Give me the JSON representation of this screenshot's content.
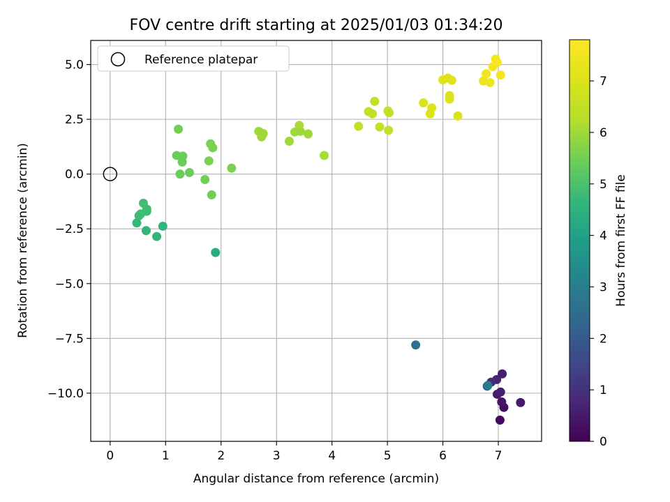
{
  "chart_data": {
    "type": "scatter",
    "title": "FOV centre drift starting at 2025/01/03 01:34:20",
    "xlabel": "Angular distance from reference (arcmin)",
    "ylabel": "Rotation from reference (arcmin)",
    "xlim": [
      -0.35,
      7.78
    ],
    "ylim": [
      -12.2,
      6.1
    ],
    "xticks": [
      0,
      1,
      2,
      3,
      4,
      5,
      6,
      7
    ],
    "yticks": [
      -10.0,
      -7.5,
      -5.0,
      -2.5,
      0.0,
      2.5,
      5.0
    ],
    "ytick_labels": [
      "−10.0",
      "−7.5",
      "−5.0",
      "−2.5",
      "0.0",
      "2.5",
      "5.0"
    ],
    "grid": true,
    "legend": {
      "placement": "top-left",
      "entries": [
        "Reference platepar"
      ]
    },
    "reference_point": {
      "x": 0,
      "y": 0,
      "label": "Reference platepar"
    },
    "colorbar": {
      "label": "Hours from first FF file",
      "min": 0,
      "max": 7.8,
      "ticks": [
        0,
        1,
        2,
        3,
        4,
        5,
        6,
        7
      ],
      "colormap": "viridis"
    },
    "points": [
      {
        "x": 7.03,
        "y": -11.23,
        "c": 0.2
      },
      {
        "x": 7.1,
        "y": -10.65,
        "c": 0.3
      },
      {
        "x": 7.06,
        "y": -10.4,
        "c": 0.4
      },
      {
        "x": 7.4,
        "y": -10.43,
        "c": 0.5
      },
      {
        "x": 6.98,
        "y": -10.05,
        "c": 0.5
      },
      {
        "x": 7.04,
        "y": -9.95,
        "c": 0.6
      },
      {
        "x": 7.07,
        "y": -9.12,
        "c": 0.6
      },
      {
        "x": 6.97,
        "y": -9.38,
        "c": 0.7
      },
      {
        "x": 6.87,
        "y": -9.5,
        "c": 0.9
      },
      {
        "x": 6.8,
        "y": -9.68,
        "c": 1.3
      },
      {
        "x": 6.81,
        "y": -9.65,
        "c": 2.9
      },
      {
        "x": 5.51,
        "y": -7.8,
        "c": 2.6
      },
      {
        "x": 1.9,
        "y": -3.58,
        "c": 4.3
      },
      {
        "x": 0.48,
        "y": -2.23,
        "c": 4.7
      },
      {
        "x": 0.52,
        "y": -1.9,
        "c": 4.8
      },
      {
        "x": 0.55,
        "y": -1.82,
        "c": 4.8
      },
      {
        "x": 0.65,
        "y": -2.58,
        "c": 4.6
      },
      {
        "x": 0.84,
        "y": -2.85,
        "c": 4.6
      },
      {
        "x": 0.95,
        "y": -2.38,
        "c": 4.6
      },
      {
        "x": 0.6,
        "y": -1.33,
        "c": 4.9
      },
      {
        "x": 0.66,
        "y": -1.6,
        "c": 4.8
      },
      {
        "x": 0.66,
        "y": -1.7,
        "c": 4.8
      },
      {
        "x": 1.2,
        "y": 0.85,
        "c": 5.4
      },
      {
        "x": 1.23,
        "y": 2.05,
        "c": 5.5
      },
      {
        "x": 1.3,
        "y": 0.55,
        "c": 5.4
      },
      {
        "x": 1.31,
        "y": 0.82,
        "c": 5.4
      },
      {
        "x": 1.26,
        "y": 0.0,
        "c": 5.4
      },
      {
        "x": 1.43,
        "y": 0.07,
        "c": 5.4
      },
      {
        "x": 1.71,
        "y": -0.25,
        "c": 5.5
      },
      {
        "x": 1.78,
        "y": 0.6,
        "c": 5.6
      },
      {
        "x": 1.81,
        "y": 1.38,
        "c": 5.6
      },
      {
        "x": 1.85,
        "y": 1.2,
        "c": 5.6
      },
      {
        "x": 1.83,
        "y": -0.95,
        "c": 5.5
      },
      {
        "x": 2.19,
        "y": 0.27,
        "c": 5.6
      },
      {
        "x": 2.68,
        "y": 1.95,
        "c": 6.0
      },
      {
        "x": 2.73,
        "y": 1.7,
        "c": 6.0
      },
      {
        "x": 2.76,
        "y": 1.85,
        "c": 6.0
      },
      {
        "x": 3.23,
        "y": 1.5,
        "c": 6.0
      },
      {
        "x": 3.33,
        "y": 1.92,
        "c": 6.0
      },
      {
        "x": 3.41,
        "y": 2.22,
        "c": 6.1
      },
      {
        "x": 3.43,
        "y": 1.95,
        "c": 6.0
      },
      {
        "x": 3.57,
        "y": 1.83,
        "c": 6.0
      },
      {
        "x": 3.86,
        "y": 0.85,
        "c": 6.1
      },
      {
        "x": 4.48,
        "y": 2.18,
        "c": 6.5
      },
      {
        "x": 4.66,
        "y": 2.85,
        "c": 6.5
      },
      {
        "x": 4.73,
        "y": 2.75,
        "c": 6.5
      },
      {
        "x": 4.77,
        "y": 3.32,
        "c": 6.5
      },
      {
        "x": 4.86,
        "y": 2.15,
        "c": 6.5
      },
      {
        "x": 5.01,
        "y": 2.88,
        "c": 6.5
      },
      {
        "x": 5.03,
        "y": 2.8,
        "c": 6.5
      },
      {
        "x": 5.02,
        "y": 2.0,
        "c": 6.5
      },
      {
        "x": 5.65,
        "y": 3.25,
        "c": 7.0
      },
      {
        "x": 5.77,
        "y": 2.75,
        "c": 7.0
      },
      {
        "x": 5.8,
        "y": 3.02,
        "c": 7.0
      },
      {
        "x": 6.0,
        "y": 4.3,
        "c": 7.1
      },
      {
        "x": 6.09,
        "y": 4.38,
        "c": 7.1
      },
      {
        "x": 6.12,
        "y": 3.58,
        "c": 7.0
      },
      {
        "x": 6.12,
        "y": 3.42,
        "c": 7.0
      },
      {
        "x": 6.16,
        "y": 4.28,
        "c": 7.1
      },
      {
        "x": 6.27,
        "y": 2.65,
        "c": 7.0
      },
      {
        "x": 6.73,
        "y": 4.25,
        "c": 7.4
      },
      {
        "x": 6.78,
        "y": 4.58,
        "c": 7.5
      },
      {
        "x": 6.85,
        "y": 4.18,
        "c": 7.4
      },
      {
        "x": 6.9,
        "y": 4.9,
        "c": 7.6
      },
      {
        "x": 6.95,
        "y": 5.25,
        "c": 7.7
      },
      {
        "x": 6.98,
        "y": 5.1,
        "c": 7.7
      },
      {
        "x": 7.04,
        "y": 4.52,
        "c": 7.6
      }
    ]
  }
}
